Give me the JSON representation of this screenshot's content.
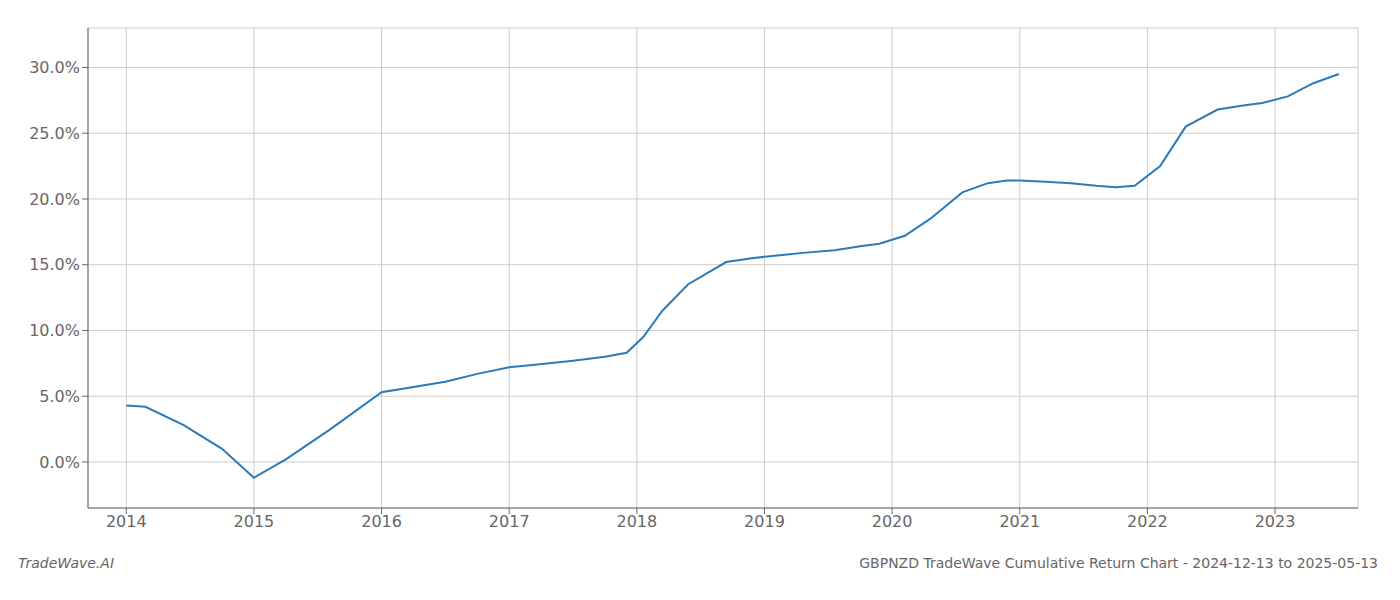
{
  "chart_data": {
    "type": "line",
    "title": "GBPNZD TradeWave Cumulative Return Chart - 2024-12-13 to 2025-05-13",
    "annotations": [
      "TradeWave.AI"
    ],
    "x": [
      2014.0,
      2014.15,
      2014.45,
      2014.75,
      2015.0,
      2015.25,
      2015.6,
      2016.0,
      2016.25,
      2016.5,
      2016.75,
      2017.0,
      2017.2,
      2017.5,
      2017.75,
      2017.92,
      2018.05,
      2018.2,
      2018.4,
      2018.7,
      2018.9,
      2019.1,
      2019.3,
      2019.55,
      2019.75,
      2019.9,
      2020.1,
      2020.3,
      2020.55,
      2020.75,
      2020.9,
      2021.0,
      2021.2,
      2021.4,
      2021.6,
      2021.75,
      2021.9,
      2022.1,
      2022.3,
      2022.55,
      2022.75,
      2022.9,
      2023.1,
      2023.3,
      2023.5
    ],
    "values": [
      4.3,
      4.2,
      2.8,
      1.0,
      -1.2,
      0.2,
      2.5,
      5.3,
      5.7,
      6.1,
      6.7,
      7.2,
      7.4,
      7.7,
      8.0,
      8.3,
      9.5,
      11.5,
      13.5,
      15.2,
      15.5,
      15.7,
      15.9,
      16.1,
      16.4,
      16.6,
      17.2,
      18.5,
      20.5,
      21.2,
      21.4,
      21.4,
      21.3,
      21.2,
      21.0,
      20.9,
      21.0,
      22.5,
      25.5,
      26.8,
      27.1,
      27.3,
      27.8,
      28.8,
      29.5
    ],
    "color": "#2b7bba",
    "xlim": [
      2013.7,
      2023.65
    ],
    "ylim": [
      -3.5,
      33.0
    ],
    "xticks": [
      2014,
      2015,
      2016,
      2017,
      2018,
      2019,
      2020,
      2021,
      2022,
      2023
    ],
    "yticks": [
      {
        "value": 0.0,
        "label": "0.0%"
      },
      {
        "value": 5.0,
        "label": "5.0%"
      },
      {
        "value": 10.0,
        "label": "10.0%"
      },
      {
        "value": 15.0,
        "label": "15.0%"
      },
      {
        "value": 20.0,
        "label": "20.0%"
      },
      {
        "value": 25.0,
        "label": "25.0%"
      },
      {
        "value": 30.0,
        "label": "30.0%"
      }
    ],
    "grid": true
  }
}
